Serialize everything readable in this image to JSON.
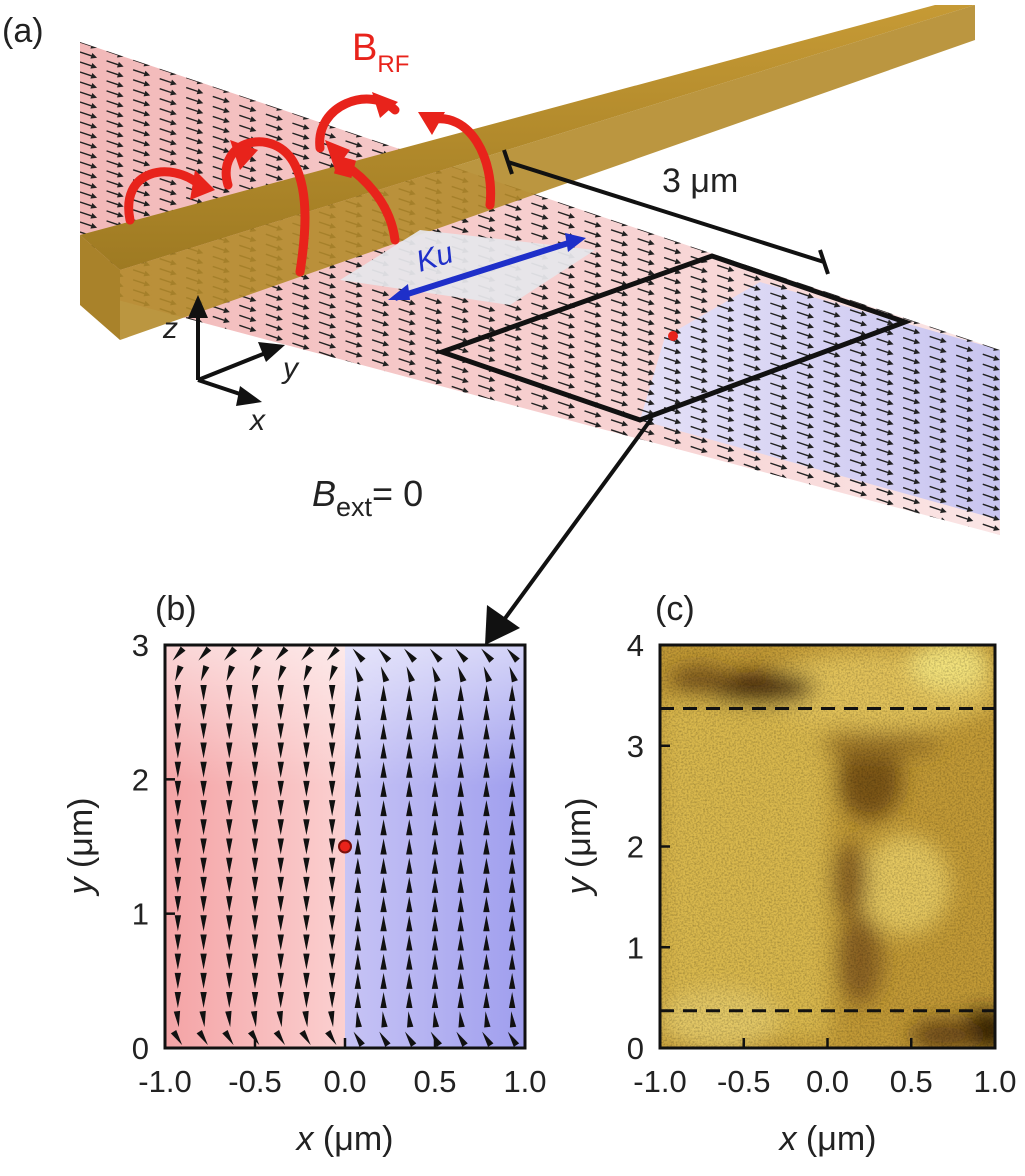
{
  "panel_a": {
    "label": "(a)",
    "brf_main": "B",
    "brf_sub": "RF",
    "scale_bar_label": "3 μm",
    "anisotropy_label": "Ku",
    "axis_z": "z",
    "axis_y": "y",
    "axis_x": "x",
    "bext_main": "B",
    "bext_sub": "ext",
    "bext_value": "= 0",
    "colors": {
      "stripline": "#b8902c",
      "pink": "#f6d2d2",
      "blue": "#dad7f2",
      "rf_arrow": "#e8231b",
      "ku_arrow": "#1e2fc9"
    }
  },
  "chart_data": [
    {
      "type": "vector_field",
      "panel_label": "(b)",
      "xlabel_var": "x",
      "xlabel_unit": " (μm)",
      "ylabel_var": "y",
      "ylabel_unit": " (μm)",
      "xlim": [
        -1.0,
        1.0
      ],
      "ylim": [
        0,
        3
      ],
      "xticks": [
        "-1.0",
        "-0.5",
        "0.0",
        "0.5",
        "1.0"
      ],
      "yticks": [
        "0",
        "1",
        "2",
        "3"
      ],
      "domain_wall_x": 0.0,
      "vortex_core": {
        "x": 0.0,
        "y": 1.5
      },
      "left_domain_direction": "-y",
      "right_domain_direction": "+y",
      "colors": {
        "left": "#f4a3a5",
        "right": "#a6a6f0",
        "core": "#e8231b"
      }
    },
    {
      "type": "heatmap",
      "panel_label": "(c)",
      "xlabel_var": "x",
      "xlabel_unit": " (μm)",
      "ylabel_var": "y",
      "ylabel_unit": " (μm)",
      "xlim": [
        -1.0,
        1.0
      ],
      "ylim": [
        0,
        4
      ],
      "xticks": [
        "-1.0",
        "-0.5",
        "0.0",
        "0.5",
        "1.0"
      ],
      "yticks": [
        "0",
        "1",
        "2",
        "3",
        "4"
      ],
      "dashed_lines_y": [
        3.37,
        0.37
      ],
      "colormap": [
        "#5a3810",
        "#b08a2c",
        "#e8cc5a",
        "#f6ec8c"
      ]
    }
  ]
}
